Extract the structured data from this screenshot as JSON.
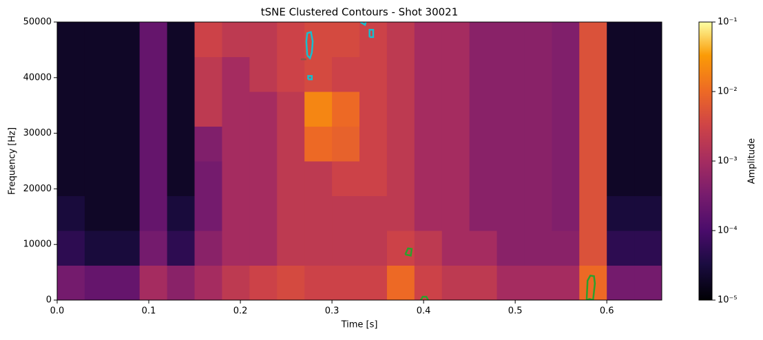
{
  "chart_data": {
    "type": "heatmap",
    "title": "tSNE Clustered Contours - Shot 30021",
    "xlabel": "Time [s]",
    "ylabel": "Frequency [Hz]",
    "x_edges": [
      0,
      0.03,
      0.06,
      0.09,
      0.12,
      0.15,
      0.18,
      0.21,
      0.24,
      0.27,
      0.3,
      0.33,
      0.36,
      0.39,
      0.42,
      0.45,
      0.48,
      0.51,
      0.54,
      0.57,
      0.6,
      0.63,
      0.66
    ],
    "y_edges": [
      0,
      6250,
      12500,
      18750,
      25000,
      31250,
      37500,
      43750,
      50000
    ],
    "values": [
      [
        0.0003,
        0.0002,
        0.0002,
        0.001,
        0.0005,
        0.001,
        0.002,
        0.003,
        0.004,
        0.003,
        0.003,
        0.003,
        0.01,
        0.003,
        0.002,
        0.002,
        0.001,
        0.001,
        0.001,
        0.01,
        0.0003,
        0.0003
      ],
      [
        5e-05,
        3e-05,
        3e-05,
        0.0003,
        5e-05,
        0.0005,
        0.001,
        0.001,
        0.002,
        0.002,
        0.002,
        0.002,
        0.003,
        0.002,
        0.001,
        0.001,
        0.0005,
        0.0005,
        0.0005,
        0.005,
        5e-05,
        5e-05
      ],
      [
        3e-05,
        2e-05,
        2e-05,
        0.0002,
        3e-05,
        0.0003,
        0.001,
        0.001,
        0.002,
        0.002,
        0.002,
        0.002,
        0.002,
        0.001,
        0.001,
        0.0005,
        0.0005,
        0.0005,
        0.0004,
        0.005,
        3e-05,
        3e-05
      ],
      [
        2e-05,
        2e-05,
        2e-05,
        0.0002,
        2e-05,
        0.0003,
        0.001,
        0.001,
        0.002,
        0.002,
        0.003,
        0.003,
        0.002,
        0.001,
        0.001,
        0.0005,
        0.0005,
        0.0005,
        0.0004,
        0.005,
        2e-05,
        2e-05
      ],
      [
        2e-05,
        2e-05,
        2e-05,
        0.0002,
        2e-05,
        0.0004,
        0.001,
        0.001,
        0.002,
        0.01,
        0.008,
        0.003,
        0.002,
        0.001,
        0.001,
        0.0005,
        0.0005,
        0.0005,
        0.0004,
        0.005,
        2e-05,
        2e-05
      ],
      [
        2e-05,
        2e-05,
        2e-05,
        0.0002,
        2e-05,
        0.002,
        0.001,
        0.001,
        0.002,
        0.02,
        0.01,
        0.003,
        0.002,
        0.001,
        0.001,
        0.0005,
        0.0005,
        0.0005,
        0.0004,
        0.005,
        2e-05,
        2e-05
      ],
      [
        2e-05,
        2e-05,
        2e-05,
        0.0002,
        2e-05,
        0.002,
        0.001,
        0.002,
        0.003,
        0.004,
        0.003,
        0.003,
        0.002,
        0.001,
        0.001,
        0.0005,
        0.0005,
        0.0005,
        0.0004,
        0.005,
        2e-05,
        2e-05
      ],
      [
        2e-05,
        2e-05,
        2e-05,
        0.0002,
        2e-05,
        0.003,
        0.002,
        0.002,
        0.003,
        0.004,
        0.004,
        0.003,
        0.002,
        0.001,
        0.001,
        0.0005,
        0.0005,
        0.0005,
        0.0004,
        0.005,
        2e-05,
        2e-05
      ]
    ],
    "xlim": [
      0,
      0.66
    ],
    "ylim": [
      0,
      50000
    ],
    "xticks": [
      {
        "value": 0,
        "label": "0.0"
      },
      0.1,
      0.2,
      0.3,
      0.4,
      0.5,
      0.6
    ],
    "yticks": [
      0,
      10000,
      20000,
      30000,
      40000,
      50000
    ],
    "colorbar": {
      "label": "Amplitude",
      "colormap": "inferno",
      "log": true,
      "lim": [
        1e-05,
        0.1
      ],
      "ticks": [
        {
          "value": 1e-05,
          "label": "10⁻⁵"
        },
        {
          "value": 0.0001,
          "label": "10⁻⁴"
        },
        {
          "value": 0.001,
          "label": "10⁻³"
        },
        {
          "value": 0.01,
          "label": "10⁻²"
        },
        {
          "value": 0.1,
          "label": "10⁻¹"
        }
      ]
    },
    "contours": [
      {
        "color": "#17becf",
        "x": [
          0.273,
          0.272,
          0.273,
          0.277,
          0.279,
          0.278,
          0.276,
          0.273
        ],
        "y": [
          44000,
          46500,
          48000,
          48200,
          46500,
          44500,
          43500,
          44000
        ]
      },
      {
        "color": "#17becf",
        "x": [
          0.274,
          0.278,
          0.278,
          0.274,
          0.274
        ],
        "y": [
          39700,
          39700,
          40300,
          40300,
          39700
        ]
      },
      {
        "color": "#17becf",
        "x": [
          0.341,
          0.345,
          0.345,
          0.341,
          0.341
        ],
        "y": [
          47300,
          47300,
          48600,
          48600,
          47300
        ]
      },
      {
        "color": "#17becf",
        "x": [
          0.331,
          0.336,
          0.337
        ],
        "y": [
          50000,
          49500,
          50000
        ]
      },
      {
        "color": "#8c564b",
        "x": [
          0.266,
          0.272
        ],
        "y": [
          43300,
          43300
        ]
      },
      {
        "color": "#2ca02c",
        "x": [
          0.38,
          0.386,
          0.387,
          0.383,
          0.38
        ],
        "y": [
          8200,
          8000,
          9200,
          9300,
          8200
        ]
      },
      {
        "color": "#2ca02c",
        "x": [
          0.397,
          0.399,
          0.403,
          0.405
        ],
        "y": [
          0,
          600,
          600,
          0
        ]
      },
      {
        "color": "#2ca02c",
        "x": [
          0.578,
          0.579,
          0.582,
          0.586,
          0.587,
          0.585,
          0.581,
          0.578
        ],
        "y": [
          0,
          3500,
          4400,
          4300,
          3000,
          0,
          200,
          0
        ]
      }
    ]
  }
}
